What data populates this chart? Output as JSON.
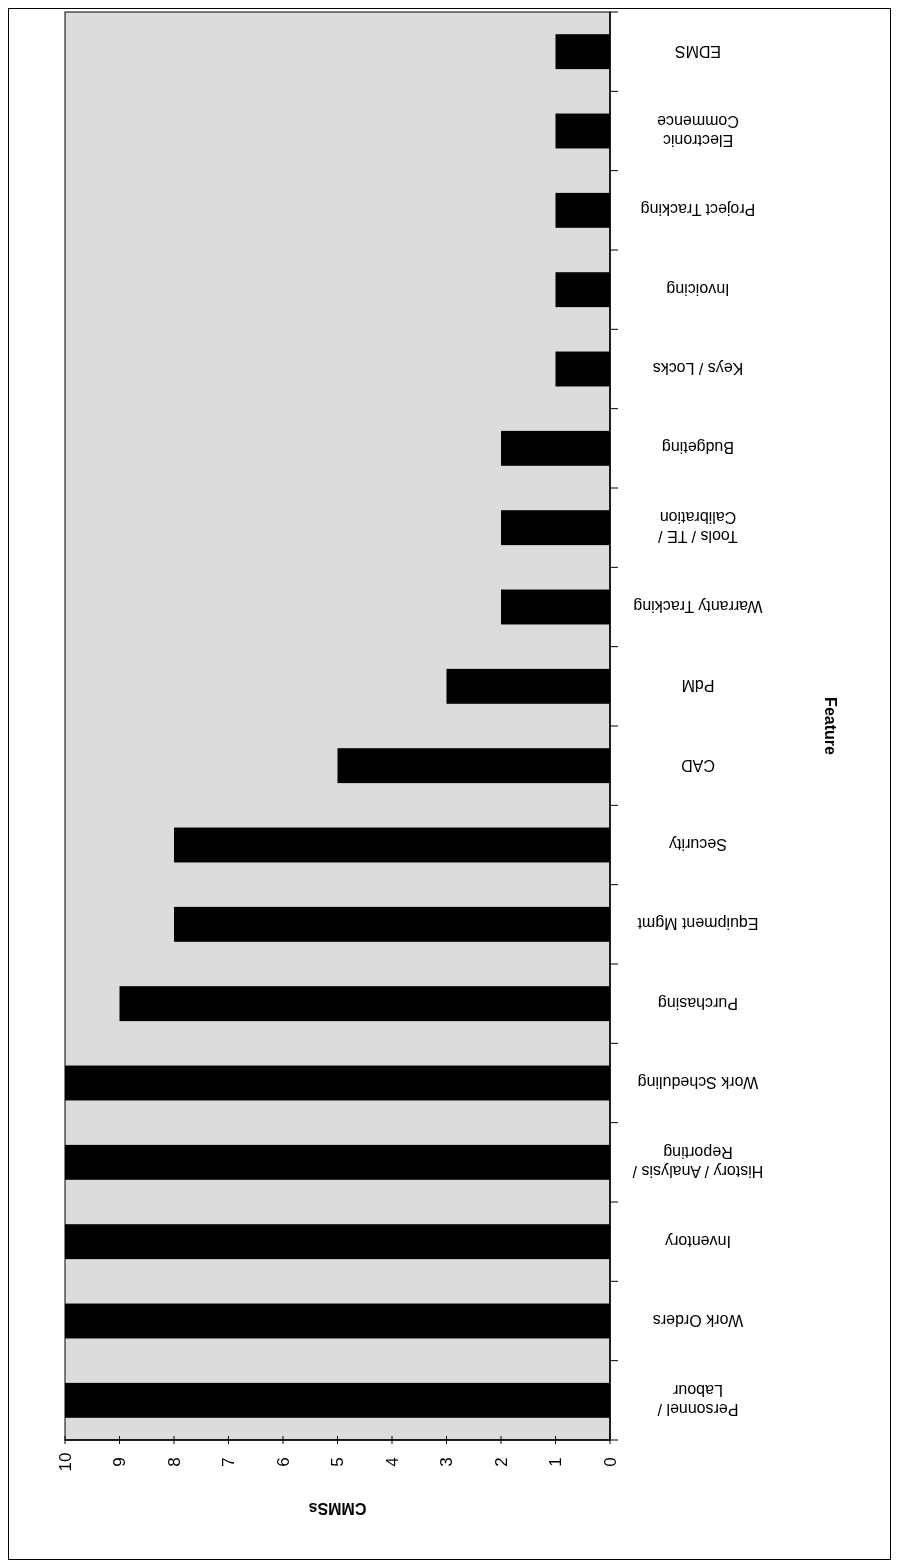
{
  "chart_data": {
    "type": "bar",
    "orientation": "horizontal",
    "xlabel": "CMMSs",
    "ylabel": "Feature",
    "categories": [
      "EDMS",
      "Electronic\nCommence",
      "Project Tracking",
      "Invoicing",
      "Keys / Locks",
      "Budgeting",
      "Tools / TE /\nCalibration",
      "Warranty Tracking",
      "PdM",
      "CAD",
      "Security",
      "Equipment Mgmt",
      "Purchasing",
      "Work Scheduling",
      "History / Analysis /\nReporting",
      "Inventory",
      "Work Orders",
      "Personnel /\nLabour"
    ],
    "values": [
      1,
      1,
      1,
      1,
      1,
      2,
      2,
      2,
      3,
      5,
      8,
      8,
      9,
      10,
      10,
      10,
      10,
      10
    ],
    "color": "#000000",
    "xlim": [
      10,
      0
    ],
    "xticks": [
      0,
      1,
      2,
      3,
      4,
      5,
      6,
      7,
      8,
      9,
      10
    ],
    "grid": false
  }
}
